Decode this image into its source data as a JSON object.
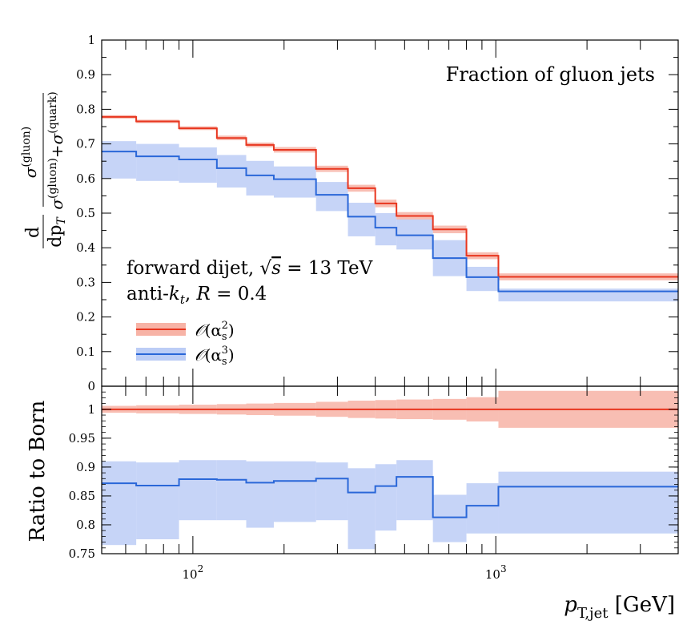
{
  "chart_data": [
    {
      "type": "line",
      "title": "Fraction of gluon jets",
      "ylabel": "d/dp_T σ(gluon)/(σ(gluon)+σ(quark))",
      "ylabel_parts": {
        "d_num": "d",
        "d_den": "dp",
        "d_den_sub": "T",
        "sigma": "σ",
        "gluon": "(gluon)",
        "quark": "(quark)",
        "plus": "+"
      },
      "xscale": "log",
      "xlim": [
        50,
        4000
      ],
      "ylim": [
        0,
        1
      ],
      "yticks": [
        "0",
        "0.1",
        "0.2",
        "0.3",
        "0.4",
        "0.5",
        "0.6",
        "0.7",
        "0.8",
        "0.9",
        "1"
      ],
      "annotations": [
        "forward dijet, √s = 13 TeV",
        "anti-k_t, R = 0.4"
      ],
      "annotation_parts": {
        "line1_prefix": "forward dijet, ",
        "line1_sqrt": "√",
        "line1_s": "s",
        "line1_suffix": " = 13 TeV",
        "line2_prefix": "anti-",
        "line2_k": "k",
        "line2_t": "t",
        "line2_mid": ", ",
        "line2_R": "R",
        "line2_suffix": " = 0.4"
      },
      "legend_position": "lower-left",
      "bin_edges": [
        50,
        65,
        90,
        120,
        150,
        185,
        255,
        325,
        400,
        470,
        620,
        800,
        1020,
        4000
      ],
      "series": [
        {
          "name": "O(α_s^2)",
          "legend": {
            "O": "𝒪",
            "open": "(α",
            "sub": "s",
            "sup": "2",
            "close": ")"
          },
          "color": "#e8361f",
          "band_color": "#f7b3a6",
          "values": [
            0.778,
            0.765,
            0.745,
            0.717,
            0.697,
            0.683,
            0.628,
            0.572,
            0.528,
            0.492,
            0.453,
            0.377,
            0.316
          ],
          "band_lo": [
            0.773,
            0.76,
            0.74,
            0.711,
            0.69,
            0.675,
            0.619,
            0.562,
            0.517,
            0.481,
            0.442,
            0.367,
            0.306
          ],
          "band_hi": [
            0.783,
            0.77,
            0.751,
            0.724,
            0.704,
            0.691,
            0.637,
            0.582,
            0.539,
            0.503,
            0.464,
            0.387,
            0.326
          ]
        },
        {
          "name": "O(α_s^3)",
          "legend": {
            "O": "𝒪",
            "open": "(α",
            "sub": "s",
            "sup": "3",
            "close": ")"
          },
          "color": "#2a67d8",
          "band_color": "#bccdf6",
          "values": [
            0.678,
            0.664,
            0.655,
            0.63,
            0.609,
            0.598,
            0.553,
            0.49,
            0.458,
            0.436,
            0.37,
            0.315,
            0.274
          ],
          "band_lo": [
            0.6,
            0.593,
            0.588,
            0.574,
            0.551,
            0.545,
            0.506,
            0.433,
            0.407,
            0.395,
            0.318,
            0.275,
            0.245
          ],
          "band_hi": [
            0.708,
            0.7,
            0.69,
            0.668,
            0.651,
            0.635,
            0.59,
            0.53,
            0.5,
            0.482,
            0.422,
            0.345,
            0.282
          ]
        }
      ]
    },
    {
      "type": "line",
      "ylabel": "Ratio to Born",
      "xlabel": "p_T,jet [GeV]",
      "xlabel_parts": {
        "p": "p",
        "sub": "T,jet",
        "unit": " [GeV]"
      },
      "xscale": "log",
      "xlim": [
        50,
        4000
      ],
      "ylim": [
        0.75,
        1.04
      ],
      "yticks": [
        "0.75",
        "0.8",
        "0.85",
        "0.9",
        "0.95",
        "1"
      ],
      "xticks": [
        {
          "value": 100,
          "base": "10",
          "exp": "2"
        },
        {
          "value": 1000,
          "base": "10",
          "exp": "3"
        }
      ],
      "bin_edges": [
        50,
        65,
        90,
        120,
        150,
        185,
        255,
        325,
        400,
        470,
        620,
        800,
        1020,
        4000
      ],
      "series": [
        {
          "name": "O(α_s^2)",
          "color": "#e8361f",
          "band_color": "#f7b3a6",
          "values": [
            1,
            1,
            1,
            1,
            1,
            1,
            1,
            1,
            1,
            1,
            1,
            1,
            1
          ],
          "band_lo": [
            0.994,
            0.993,
            0.992,
            0.991,
            0.99,
            0.989,
            0.987,
            0.985,
            0.984,
            0.983,
            0.982,
            0.979,
            0.968
          ],
          "band_hi": [
            1.006,
            1.007,
            1.008,
            1.009,
            1.01,
            1.011,
            1.013,
            1.015,
            1.016,
            1.017,
            1.018,
            1.021,
            1.032
          ]
        },
        {
          "name": "O(α_s^3)",
          "color": "#2a67d8",
          "band_color": "#bccdf6",
          "values": [
            0.872,
            0.868,
            0.879,
            0.878,
            0.873,
            0.876,
            0.88,
            0.856,
            0.867,
            0.883,
            0.813,
            0.833,
            0.866
          ],
          "band_lo": [
            0.765,
            0.775,
            0.808,
            0.808,
            0.795,
            0.805,
            0.808,
            0.758,
            0.79,
            0.808,
            0.77,
            0.785,
            0.785
          ],
          "band_hi": [
            0.91,
            0.908,
            0.912,
            0.912,
            0.91,
            0.91,
            0.908,
            0.898,
            0.905,
            0.912,
            0.852,
            0.872,
            0.892
          ]
        }
      ]
    }
  ]
}
